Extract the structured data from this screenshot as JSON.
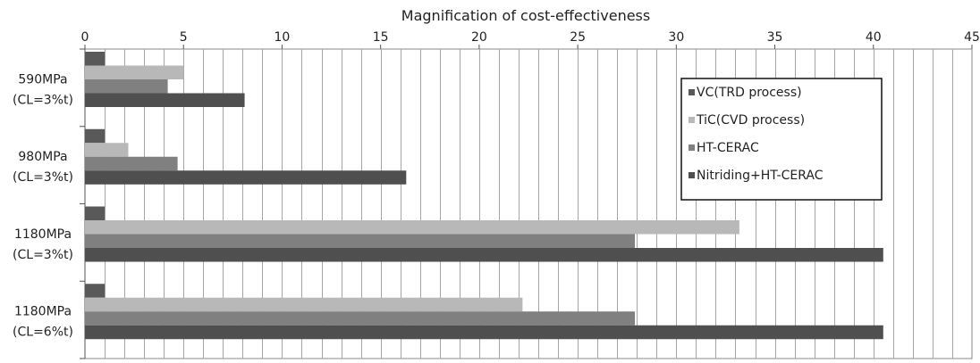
{
  "chart_data": {
    "type": "bar",
    "orientation": "horizontal",
    "title": "Magnification of  cost-effectiveness",
    "xlim": [
      0,
      45
    ],
    "x_ticks": [
      0,
      5,
      10,
      15,
      20,
      25,
      30,
      35,
      40,
      45
    ],
    "x_minor_step": 1,
    "x_axis_position": "top",
    "grid": true,
    "legend_position": "top-right",
    "categories": [
      {
        "line1": "590MPa",
        "line2": "(CL=3%t)"
      },
      {
        "line1": "980MPa",
        "line2": "(CL=3%t)"
      },
      {
        "line1": "1180MPa",
        "line2": "(CL=3%t)"
      },
      {
        "line1": "1180MPa",
        "line2": "(CL=6%t)"
      }
    ],
    "series": [
      {
        "name": "VC(TRD process)",
        "color": "#595959",
        "values": [
          1,
          1,
          1,
          1
        ]
      },
      {
        "name": "TiC(CVD process)",
        "color": "#b8b8b8",
        "values": [
          5,
          2.2,
          33.2,
          22.2
        ]
      },
      {
        "name": "HT-CERAC",
        "color": "#808080",
        "values": [
          4.2,
          4.7,
          27.9,
          27.9
        ]
      },
      {
        "name": "Nitriding+HT-CERAC",
        "color": "#4f4f4f",
        "values": [
          8.1,
          16.3,
          40.5,
          40.5
        ]
      }
    ]
  }
}
